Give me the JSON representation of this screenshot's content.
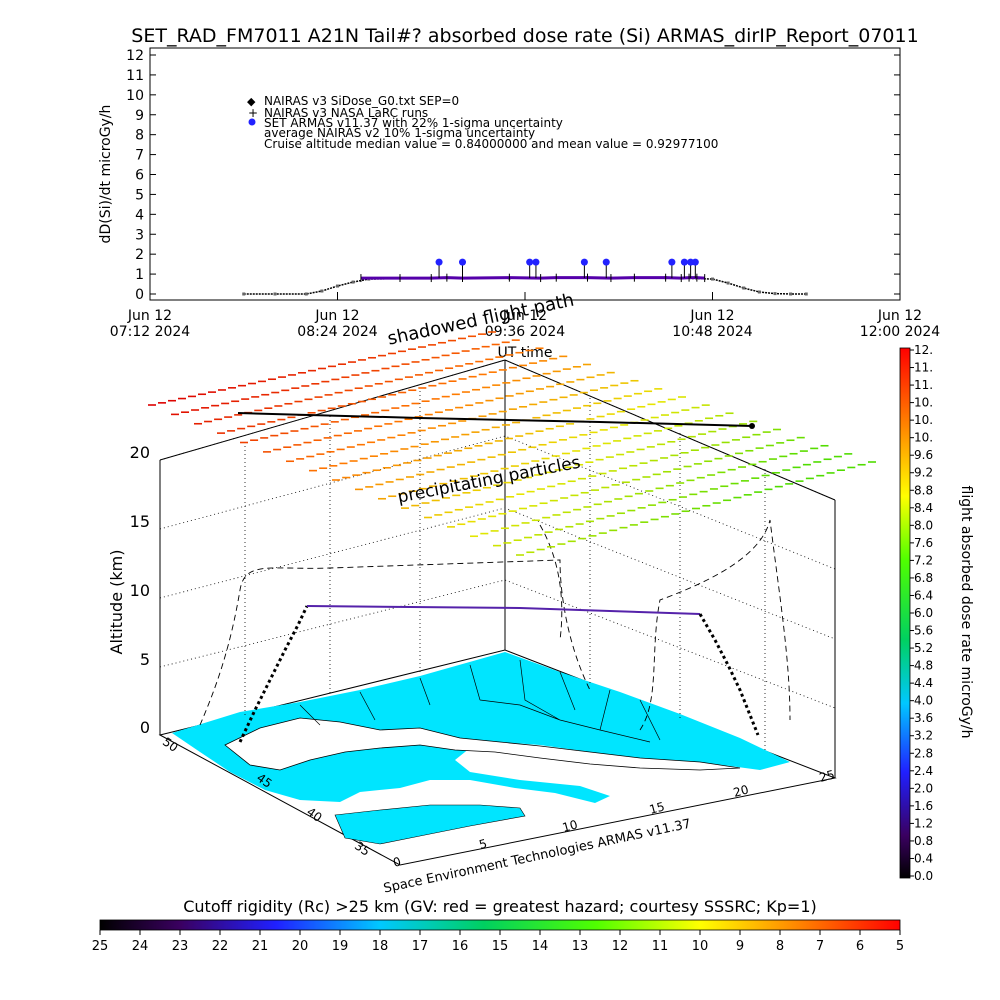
{
  "title": "SET_RAD_FM7011  A21N Tail#? absorbed dose rate (Si) ARMAS_dirIP_Report_07011",
  "chart_data": [
    {
      "type": "scatter",
      "ylabel": "dD(Si)/dt microGy/h",
      "xlabel": "UT time",
      "ylim": [
        0,
        12
      ],
      "yticks": [
        "0",
        "1",
        "2",
        "3",
        "4",
        "5",
        "6",
        "7",
        "8",
        "9",
        "10",
        "11",
        "12"
      ],
      "xticks": [
        {
          "top": "Jun 12",
          "bottom": "07:12 2024"
        },
        {
          "top": "Jun 12",
          "bottom": "08:24 2024"
        },
        {
          "top": "Jun 12",
          "bottom": "09:36 2024"
        },
        {
          "top": "Jun 12",
          "bottom": "10:48 2024"
        },
        {
          "top": "Jun 12",
          "bottom": "12:00 2024"
        }
      ],
      "xlim_hours": [
        7.2,
        12.0
      ],
      "legend": [
        "NAIRAS v3 SiDose_G0.txt SEP=0",
        "NAIRAS v3 NASA LaRC runs",
        "SET ARMAS v11.37 with 22% 1-sigma uncertainty",
        "average NAIRAS v2 10% 1-sigma uncertainty",
        "Cruise altitude median value = 0.84000000 and mean value = 0.92977100"
      ],
      "series": [
        {
          "name": "NAIRAS v3 SiDose_G0.txt SEP=0",
          "color": "#000000",
          "x": [
            7.8,
            8.0,
            8.2,
            8.3,
            8.4,
            8.5,
            8.6,
            9.0,
            9.5,
            10.0,
            10.5,
            10.8,
            10.9,
            11.0,
            11.1,
            11.2,
            11.3,
            11.4
          ],
          "y": [
            0.0,
            0.0,
            0.0,
            0.15,
            0.4,
            0.6,
            0.75,
            0.8,
            0.8,
            0.82,
            0.82,
            0.75,
            0.55,
            0.3,
            0.1,
            0.02,
            0.0,
            0.0
          ]
        },
        {
          "name": "SET ARMAS v11.37 with 22% 1-sigma uncertainty",
          "color": "#5500aa",
          "x": [
            8.55,
            8.8,
            9.0,
            9.1,
            9.2,
            9.5,
            9.7,
            9.8,
            10.0,
            10.15,
            10.3,
            10.5,
            10.6,
            10.65,
            10.7,
            10.75
          ],
          "y": [
            0.8,
            0.8,
            0.8,
            0.82,
            0.8,
            0.82,
            0.8,
            0.82,
            0.82,
            0.8,
            0.82,
            0.82,
            0.8,
            0.82,
            0.82,
            0.8
          ]
        },
        {
          "name": "SET ARMAS spikes",
          "color": "#2222ff",
          "x": [
            9.05,
            9.2,
            9.63,
            9.67,
            9.98,
            10.12,
            10.54,
            10.62,
            10.66,
            10.69
          ],
          "y": [
            1.6,
            1.6,
            1.6,
            1.6,
            1.6,
            1.6,
            1.6,
            1.6,
            1.6,
            1.6
          ]
        }
      ]
    },
    {
      "type": "scatter",
      "ylabel": "Altitude (km)",
      "zticks": [
        "0",
        "5",
        "10",
        "15",
        "20"
      ],
      "latticks": [
        "35",
        "40",
        "45",
        "50"
      ],
      "lonticks": [
        "0",
        "5",
        "10",
        "15",
        "20",
        "25"
      ],
      "annotations": [
        "shadowed flight path",
        "precipitating particles",
        "Space Environment Technologies ARMAS v11.37"
      ],
      "colorbar": {
        "label": "flight absorbed dose rate microGy/h",
        "ticks": [
          "0.0",
          "0.4",
          "0.8",
          "1.2",
          "1.6",
          "2.0",
          "2.4",
          "2.8",
          "3.2",
          "3.6",
          "4.0",
          "4.4",
          "4.8",
          "5.2",
          "5.6",
          "6.0",
          "6.4",
          "6.8",
          "7.2",
          "7.6",
          "8.0",
          "8.4",
          "8.8",
          "9.2",
          "9.6",
          "10.",
          "10.",
          "10.",
          "11.",
          "11.",
          "12."
        ]
      }
    },
    {
      "type": "heatmap",
      "label": "Cutoff rigidity (Rc) >25 km (GV: red = greatest hazard; courtesy SSSRC; Kp=1)",
      "ticks": [
        "25",
        "24",
        "23",
        "22",
        "21",
        "20",
        "19",
        "18",
        "17",
        "16",
        "15",
        "14",
        "13",
        "12",
        "11",
        "10",
        "9",
        "8",
        "7",
        "6",
        "5"
      ]
    }
  ],
  "colors": {
    "sea": "#00e5ff",
    "flight": "#5522aa",
    "land": "#ffffff"
  }
}
